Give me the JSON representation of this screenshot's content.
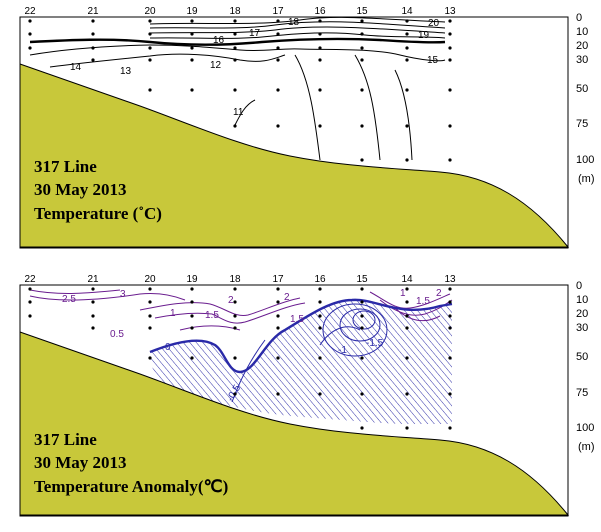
{
  "panels": [
    {
      "stations": [
        "22",
        "21",
        "20",
        "19",
        "18",
        "17",
        "16",
        "15",
        "14",
        "13"
      ],
      "depths": [
        "0",
        "10",
        "20",
        "30",
        "50",
        "75",
        "100"
      ],
      "depth_unit": "(m)",
      "title_lines": [
        "317 Line",
        "30 May 2013",
        "Temperature (˚C)"
      ],
      "contour_labels": [
        "20",
        "19",
        "18",
        "17",
        "16",
        "15",
        "14",
        "13",
        "12",
        "11"
      ]
    },
    {
      "stations": [
        "22",
        "21",
        "20",
        "19",
        "18",
        "17",
        "16",
        "15",
        "14",
        "13"
      ],
      "depths": [
        "0",
        "10",
        "20",
        "30",
        "50",
        "75",
        "100"
      ],
      "depth_unit": "(m)",
      "title_lines": [
        "317 Line",
        "30 May 2013",
        "Temperature Anomaly(℃)"
      ],
      "contour_labels": [
        "2.5",
        "3",
        "2",
        "1.5",
        "1",
        "0.5",
        "0",
        "-0.5",
        "2",
        "1.5",
        "-1",
        "-1.5",
        "1",
        "1.5",
        "2"
      ]
    }
  ],
  "colors": {
    "seafloor": "#c8c83a",
    "temperature_contour": "#000000",
    "positive_anomaly": "#6a1d8f",
    "negative_anomaly": "#2a2aa8",
    "hatch": "#3333aa"
  }
}
